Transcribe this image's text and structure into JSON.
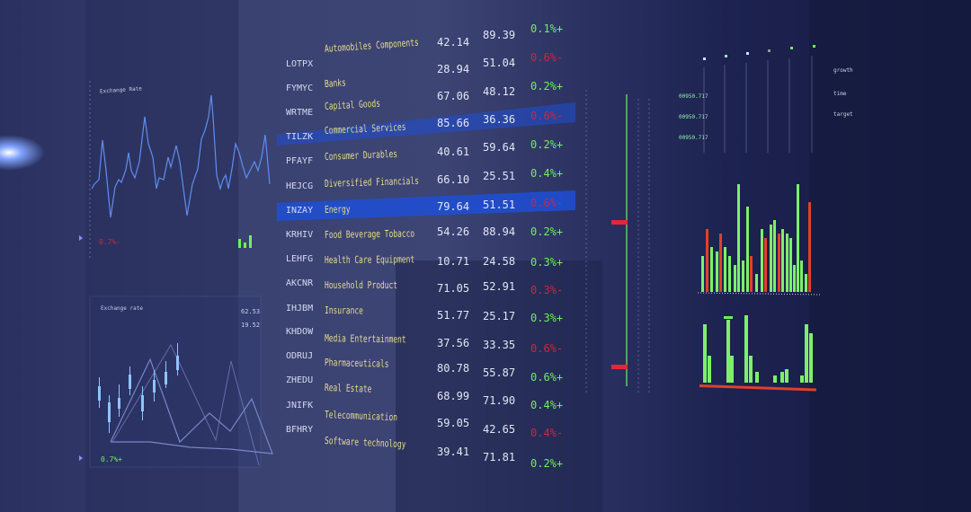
{
  "rows": [
    {
      "ticker": "LOTPX",
      "name": "Automobiles Components",
      "open": "42.14",
      "close": "89.39",
      "change": "0.1%+",
      "dir": "up"
    },
    {
      "ticker": "FYMYC",
      "name": "Banks",
      "open": "28.94",
      "close": "51.04",
      "change": "0.6%-",
      "dir": "down"
    },
    {
      "ticker": "WRTME",
      "name": "Capital Goods",
      "open": "67.06",
      "close": "48.12",
      "change": "0.2%+",
      "dir": "up"
    },
    {
      "ticker": "TILZK",
      "name": "Commercial Services",
      "open": "85.66",
      "close": "36.36",
      "change": "0.6%-",
      "dir": "down",
      "highlight": true
    },
    {
      "ticker": "PFAYF",
      "name": "Consumer Durables",
      "open": "40.61",
      "close": "59.64",
      "change": "0.2%+",
      "dir": "up"
    },
    {
      "ticker": "HEJCG",
      "name": "Diversified Financials",
      "open": "66.10",
      "close": "25.51",
      "change": "0.4%+",
      "dir": "up"
    },
    {
      "ticker": "INZAY",
      "name": "Energy",
      "open": "79.64",
      "close": "51.51",
      "change": "0.6%-",
      "dir": "down",
      "highlight": true
    },
    {
      "ticker": "KRHIV",
      "name": "Food Beverage Tobacco",
      "open": "54.26",
      "close": "88.94",
      "change": "0.2%+",
      "dir": "up"
    },
    {
      "ticker": "LEHFG",
      "name": "Health Care Equipment",
      "open": "10.71",
      "close": "24.58",
      "change": "0.3%+",
      "dir": "up"
    },
    {
      "ticker": "AKCNR",
      "name": "Household Product",
      "open": "71.05",
      "close": "52.91",
      "change": "0.3%-",
      "dir": "down"
    },
    {
      "ticker": "IHJBM",
      "name": "Insurance",
      "open": "51.77",
      "close": "25.17",
      "change": "0.3%+",
      "dir": "up"
    },
    {
      "ticker": "KHDOW",
      "name": "Media Entertainment",
      "open": "37.56",
      "close": "33.35",
      "change": "0.6%-",
      "dir": "down"
    },
    {
      "ticker": "ODRUJ",
      "name": "Pharmaceuticals",
      "open": "80.78",
      "close": "55.87",
      "change": "0.6%+",
      "dir": "up"
    },
    {
      "ticker": "ZHEDU",
      "name": "Real Estate",
      "open": "68.99",
      "close": "71.90",
      "change": "0.4%+",
      "dir": "up"
    },
    {
      "ticker": "JNIFK",
      "name": "Telecommunication",
      "open": "59.05",
      "close": "42.65",
      "change": "0.4%-",
      "dir": "down"
    },
    {
      "ticker": "BFHRY",
      "name": "Software technology",
      "open": "39.41",
      "close": "71.81",
      "change": "0.2%+",
      "dir": "up"
    }
  ],
  "left_panel_top": {
    "title": "Exchange Rate",
    "change": "0.7%-"
  },
  "left_panel_bottom": {
    "title": "Exchange rate",
    "value1": "62.53",
    "value2": "19.52",
    "change": "0.7%+"
  },
  "right_panel": {
    "readouts": [
      "00950.717",
      "00950.717",
      "00950.717"
    ],
    "labels": [
      "growth",
      "time",
      "target"
    ]
  },
  "colors": {
    "up": "#6df15a",
    "down": "#c8283e",
    "highlight": "#1f4fd6",
    "line": "#5d8ef0",
    "label": "#e5dc8a"
  }
}
